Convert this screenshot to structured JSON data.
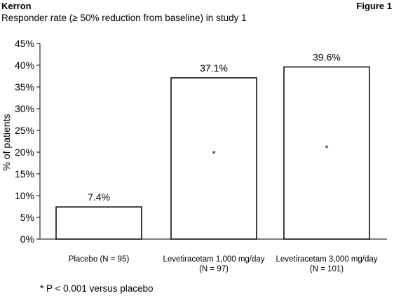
{
  "header": {
    "author": "Kerron",
    "figure_label": "Figure 1",
    "subtitle": "Responder rate (≥ 50% reduction from baseline) in study 1"
  },
  "footnote": "* P < 0.001 versus placebo",
  "chart_data": {
    "type": "bar",
    "title": "Responder rate (≥ 50% reduction from baseline) in study 1",
    "ylabel": "% of patients",
    "xlabel": "",
    "ylim": [
      0,
      45
    ],
    "yticks": [
      "0%",
      "5%",
      "10%",
      "15%",
      "20%",
      "25%",
      "30%",
      "35%",
      "40%",
      "45%"
    ],
    "categories": [
      [
        "Placebo (N = 95)"
      ],
      [
        "Levetiracetam 1,000 mg/day",
        "(N = 97)"
      ],
      [
        "Levetiracetam 3,000 mg/day",
        "(N = 101)"
      ]
    ],
    "values": [
      7.4,
      37.1,
      39.6
    ],
    "value_labels": [
      "7.4%",
      "37.1%",
      "39.6%"
    ],
    "significance_markers": [
      "",
      "*",
      "*"
    ],
    "grid": false,
    "legend": "none",
    "colors": {
      "bar_fill": "#ffffff",
      "bar_stroke": "#000000"
    }
  }
}
